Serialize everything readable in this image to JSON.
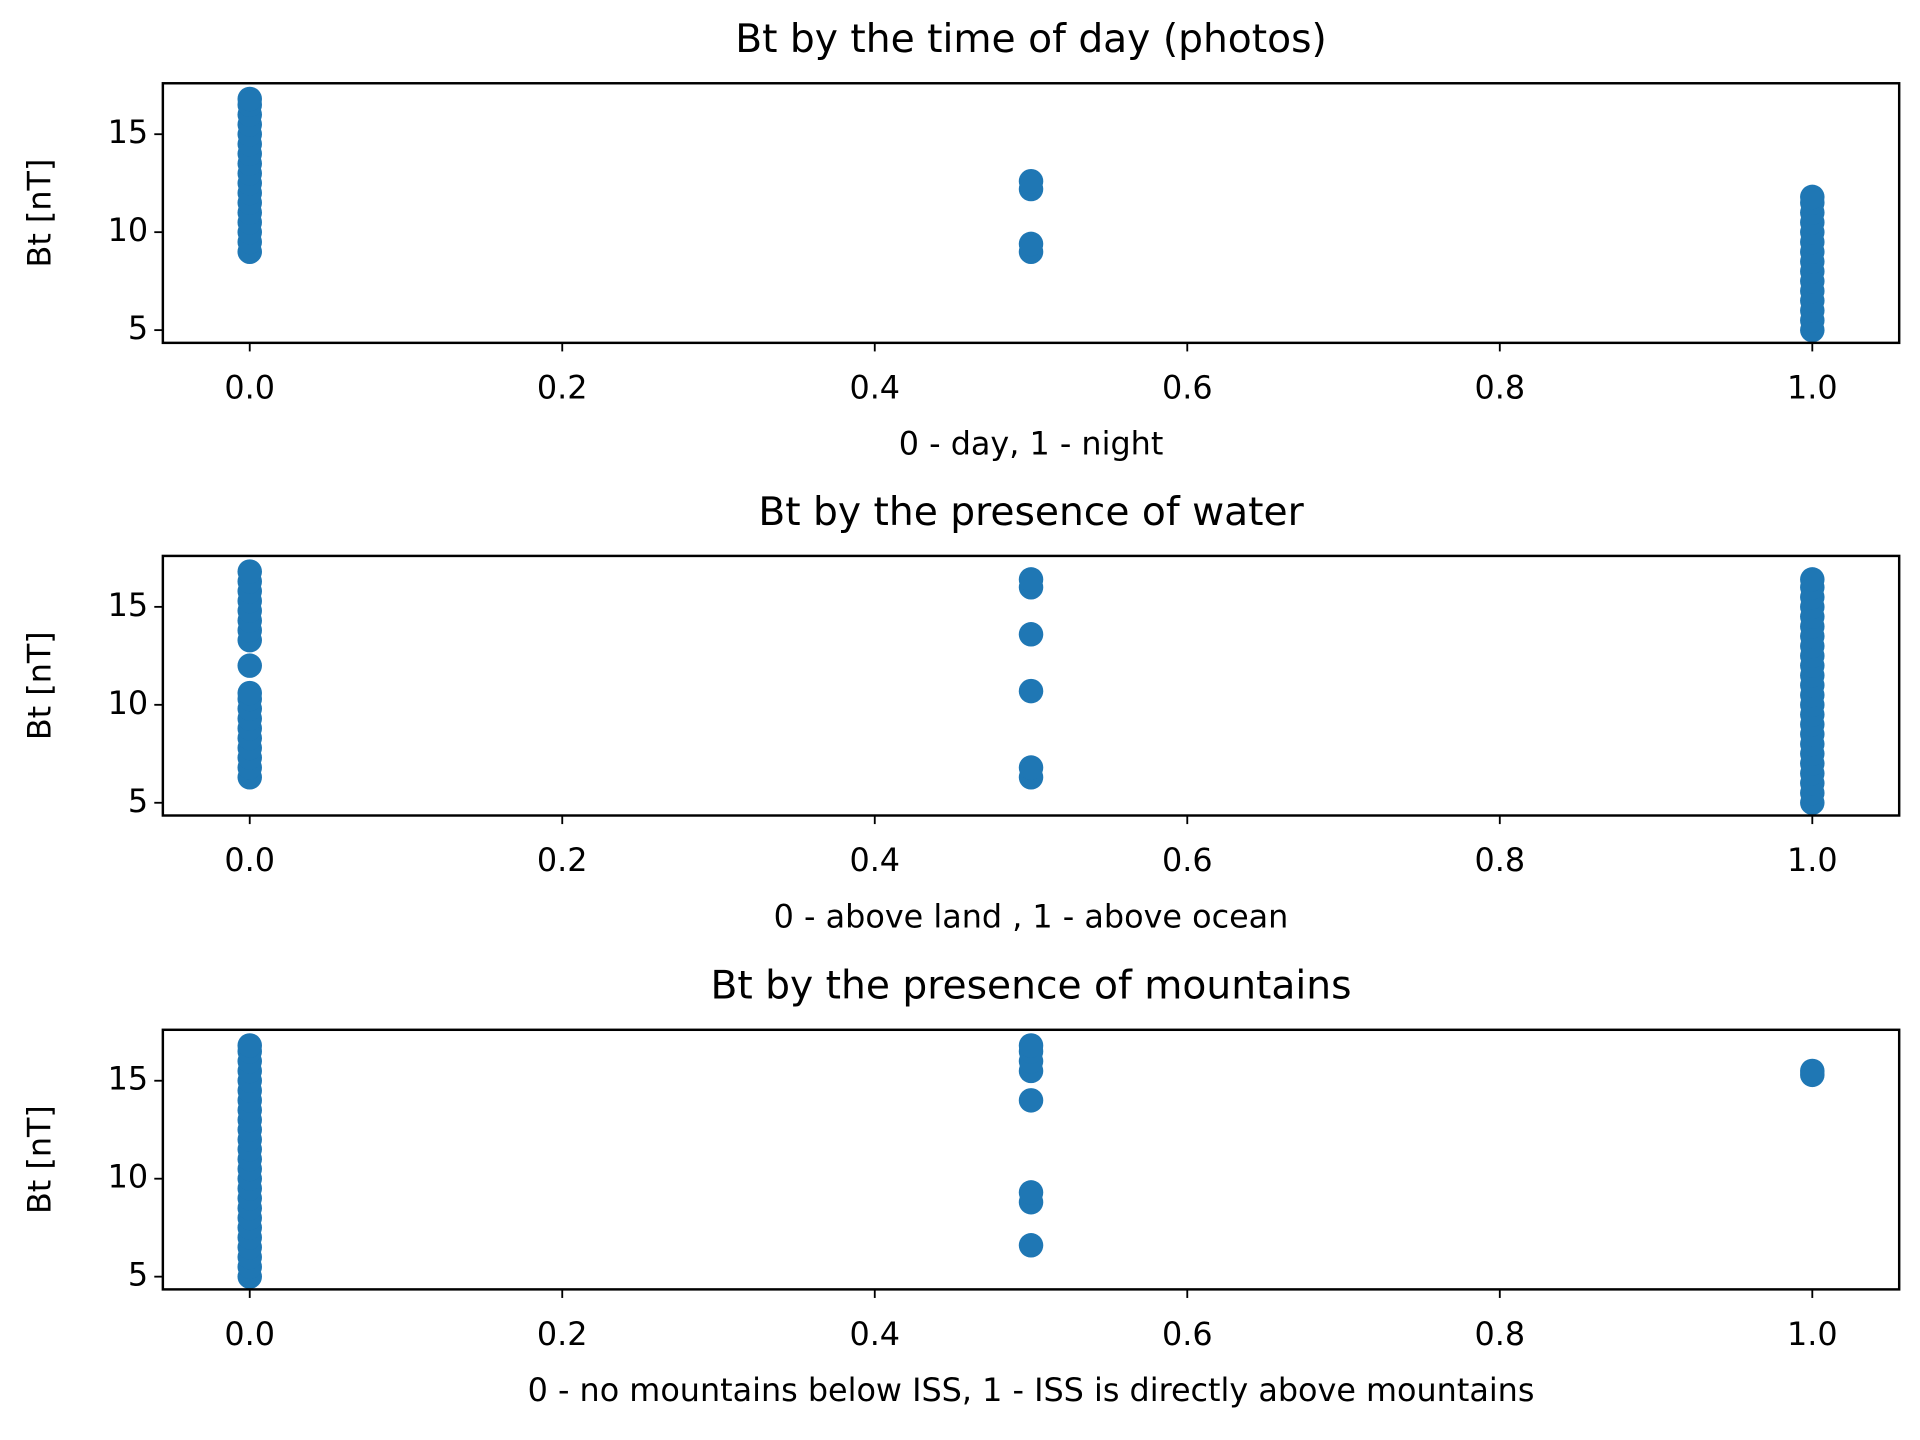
{
  "chart_data": [
    {
      "type": "scatter",
      "title": "Bt by the time of day (photos)",
      "x_label": "0 - day, 1 - night",
      "y_label": "Bt [nT]",
      "xlim": [
        -0.0556,
        1.0556
      ],
      "ylim": [
        4.35,
        17.6
      ],
      "xticks": [
        {
          "value": 0,
          "label": "0.0"
        },
        0.2,
        0.4,
        0.6,
        0.8,
        {
          "value": 1,
          "label": "1.0"
        }
      ],
      "yticks": [
        5,
        10,
        15
      ],
      "color": "#1f77b4",
      "x": [
        0,
        0,
        0,
        0,
        0,
        0,
        0,
        0,
        0,
        0,
        0,
        0,
        0,
        0,
        0,
        0,
        0,
        0.5,
        0.5,
        0.5,
        0.5,
        1,
        1,
        1,
        1,
        1,
        1,
        1,
        1,
        1,
        1,
        1,
        1,
        1,
        1,
        1
      ],
      "y": [
        9,
        9.5,
        10,
        10.5,
        11,
        11.5,
        12,
        12.5,
        13,
        13.5,
        14,
        14.5,
        15,
        15.5,
        16,
        16.5,
        16.8,
        9.0,
        9.4,
        12.2,
        12.6,
        5,
        5.5,
        6,
        6.5,
        7,
        7.5,
        8,
        8.5,
        9,
        9.5,
        10,
        10.5,
        11,
        11.5,
        11.8
      ]
    },
    {
      "type": "scatter",
      "title": "Bt by the presence of water",
      "x_label": "0 - above land , 1 - above ocean",
      "y_label": "Bt [nT]",
      "xlim": [
        -0.0556,
        1.0556
      ],
      "ylim": [
        4.35,
        17.6
      ],
      "xticks": [
        {
          "value": 0,
          "label": "0.0"
        },
        0.2,
        0.4,
        0.6,
        0.8,
        {
          "value": 1,
          "label": "1.0"
        }
      ],
      "yticks": [
        5,
        10,
        15
      ],
      "color": "#1f77b4",
      "x": [
        0,
        0,
        0,
        0,
        0,
        0,
        0,
        0,
        0,
        0,
        0,
        0,
        0,
        0,
        0,
        0,
        0,
        0,
        0,
        0.5,
        0.5,
        0.5,
        0.5,
        0.5,
        0.5,
        1,
        1,
        1,
        1,
        1,
        1,
        1,
        1,
        1,
        1,
        1,
        1,
        1,
        1,
        1,
        1,
        1,
        1,
        1,
        1,
        1,
        1,
        1,
        1
      ],
      "y": [
        6.3,
        6.8,
        7.3,
        7.8,
        8.3,
        8.8,
        9.3,
        9.8,
        10.3,
        10.6,
        12,
        13.3,
        13.8,
        14.3,
        14.8,
        15.3,
        15.8,
        16.3,
        16.8,
        6.3,
        6.8,
        10.7,
        13.6,
        16,
        16.4,
        5,
        5.5,
        6,
        6.5,
        7,
        7.5,
        8,
        8.5,
        9,
        9.5,
        10,
        10.5,
        11,
        11.5,
        12,
        12.5,
        13,
        13.5,
        14,
        14.5,
        15,
        15.5,
        16,
        16.4
      ]
    },
    {
      "type": "scatter",
      "title": "Bt by the presence of mountains",
      "x_label": "0 - no mountains below ISS, 1 - ISS is directly above mountains",
      "y_label": "Bt [nT]",
      "xlim": [
        -0.0556,
        1.0556
      ],
      "ylim": [
        4.35,
        17.6
      ],
      "xticks": [
        {
          "value": 0,
          "label": "0.0"
        },
        0.2,
        0.4,
        0.6,
        0.8,
        {
          "value": 1,
          "label": "1.0"
        }
      ],
      "yticks": [
        5,
        10,
        15
      ],
      "color": "#1f77b4",
      "x": [
        0,
        0,
        0,
        0,
        0,
        0,
        0,
        0,
        0,
        0,
        0,
        0,
        0,
        0,
        0,
        0,
        0,
        0,
        0,
        0,
        0,
        0,
        0,
        0,
        0,
        0.5,
        0.5,
        0.5,
        0.5,
        0.5,
        0.5,
        0.5,
        0.5,
        1,
        1
      ],
      "y": [
        5,
        5.5,
        6,
        6.5,
        7,
        7.5,
        8,
        8.5,
        9,
        9.5,
        10,
        10.5,
        11,
        11.5,
        12,
        12.5,
        13,
        13.5,
        14,
        14.5,
        15,
        15.5,
        16,
        16.5,
        16.8,
        6.6,
        8.8,
        9.3,
        14,
        15.5,
        16,
        16.5,
        16.8,
        15.3,
        15.5
      ]
    }
  ]
}
